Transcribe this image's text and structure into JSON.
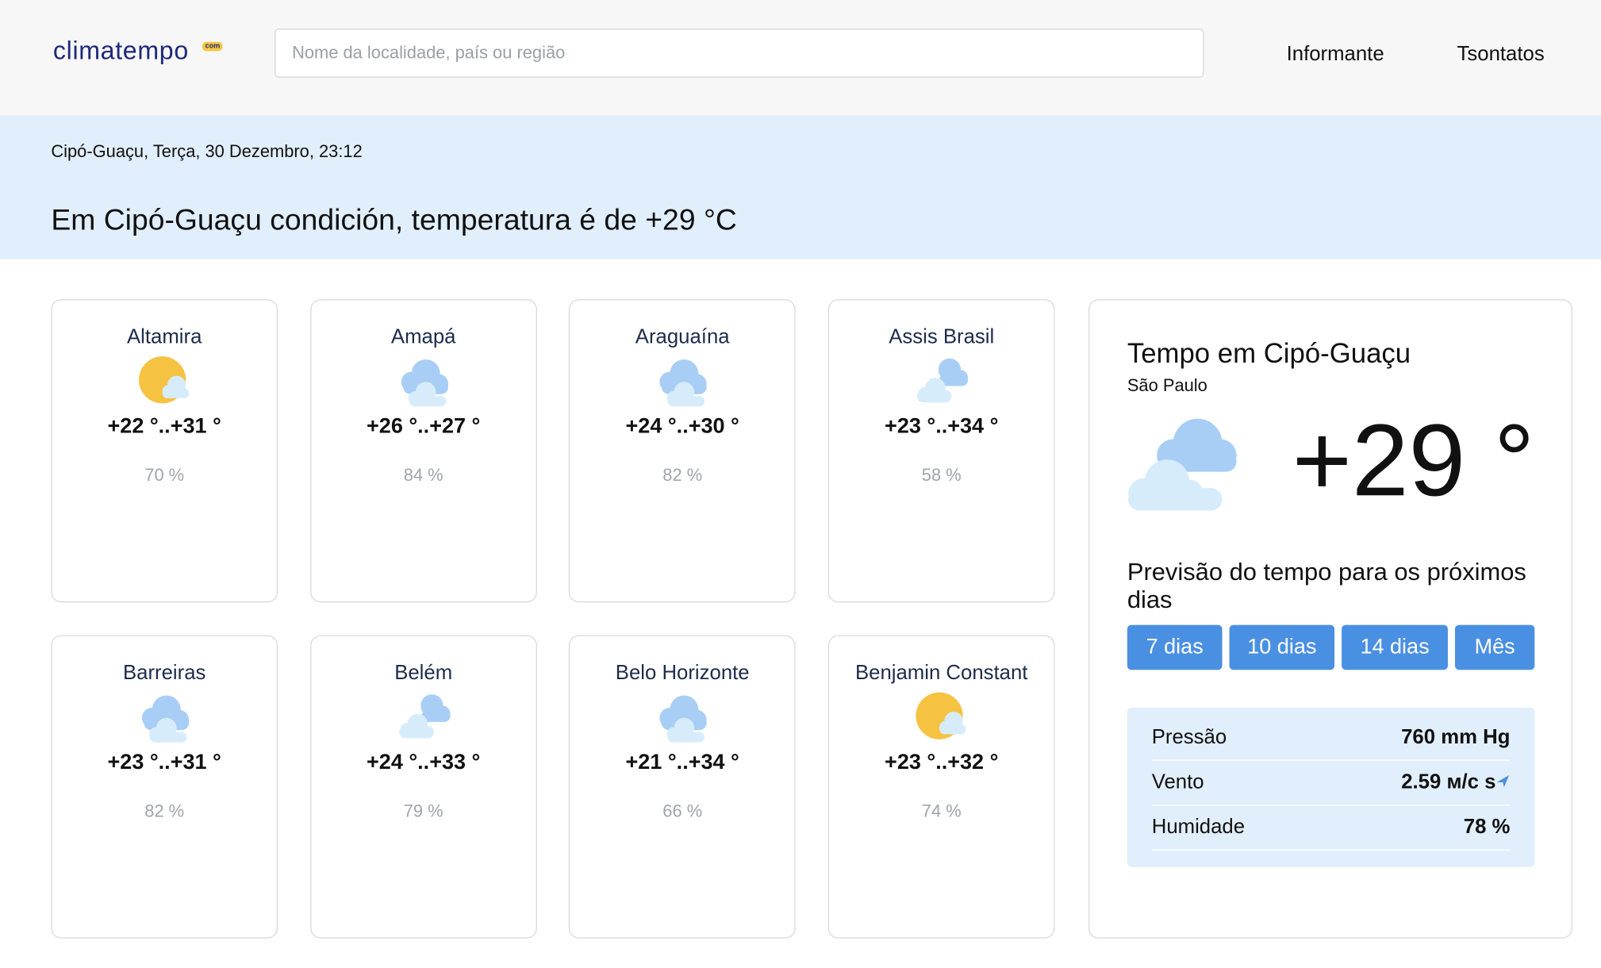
{
  "header": {
    "logo": "climatempo",
    "logo_badge": "com",
    "search_placeholder": "Nome da localidade, país ou região",
    "nav": [
      "Informante",
      "Tsontatos"
    ]
  },
  "banner": {
    "location_line": "Cipó-Guaçu, Terça, 30 Dezembro, 23:12",
    "headline": "Em Cipó-Guaçu condición, temperatura é de +29 °C"
  },
  "cities": [
    {
      "name": "Altamira",
      "temp": "+22 °..+31 °",
      "humidity": "70 %"
    },
    {
      "name": "Amapá",
      "temp": "+26 °..+27 °",
      "humidity": "84 %"
    },
    {
      "name": "Araguaína",
      "temp": "+24 °..+30 °",
      "humidity": "82 %"
    },
    {
      "name": "Assis Brasil",
      "temp": "+23 °..+34 °",
      "humidity": "58 %"
    },
    {
      "name": "Barreiras",
      "temp": "+23 °..+31 °",
      "humidity": "82 %"
    },
    {
      "name": "Belém",
      "temp": "+24 °..+33 °",
      "humidity": "79 %"
    },
    {
      "name": "Belo Horizonte",
      "temp": "+21 °..+34 °",
      "humidity": "66 %"
    },
    {
      "name": "Benjamin Constant",
      "temp": "+23 °..+32 °",
      "humidity": "74 %"
    }
  ],
  "panel": {
    "title": "Tempo em Cipó-Guaçu",
    "region": "São Paulo",
    "temperature": "+29 °",
    "forecast_heading": "Previsão do tempo para os próximos dias",
    "buttons": [
      "7 dias",
      "10 dias",
      "14 dias",
      "Mês"
    ],
    "stats": [
      {
        "label": "Pressão",
        "value": "760 mm Hg"
      },
      {
        "label": "Vento",
        "value": "2.59 м/с s"
      },
      {
        "label": "Humidade",
        "value": "78 %"
      }
    ]
  }
}
